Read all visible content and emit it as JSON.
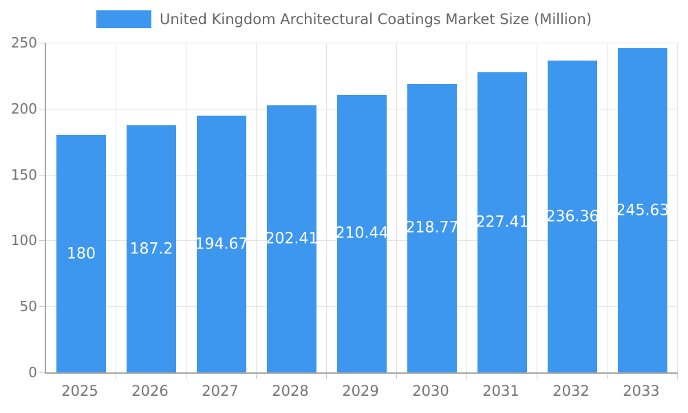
{
  "legend": {
    "label": "United Kingdom Architectural Coatings Market Size (Million)"
  },
  "chart_data": {
    "type": "bar",
    "title": "United Kingdom Architectural Coatings Market Size (Million)",
    "categories": [
      "2025",
      "2026",
      "2027",
      "2028",
      "2029",
      "2030",
      "2031",
      "2032",
      "2033"
    ],
    "values": [
      180,
      187.2,
      194.67,
      202.41,
      210.44,
      218.77,
      227.41,
      236.36,
      245.63
    ],
    "value_labels": [
      "180",
      "187.2",
      "194.67",
      "202.41",
      "210.44",
      "218.77",
      "227.41",
      "236.36",
      "245.63"
    ],
    "xlabel": "",
    "ylabel": "",
    "ylim": [
      0,
      250
    ],
    "yticks": [
      0,
      50,
      100,
      150,
      200,
      250
    ],
    "grid": true,
    "legend_position": "top",
    "bar_color": "#3d97ee",
    "value_label_color": "#ffffff",
    "tick_label_color": "#757575",
    "gridline_color": "#e3e3e3"
  }
}
